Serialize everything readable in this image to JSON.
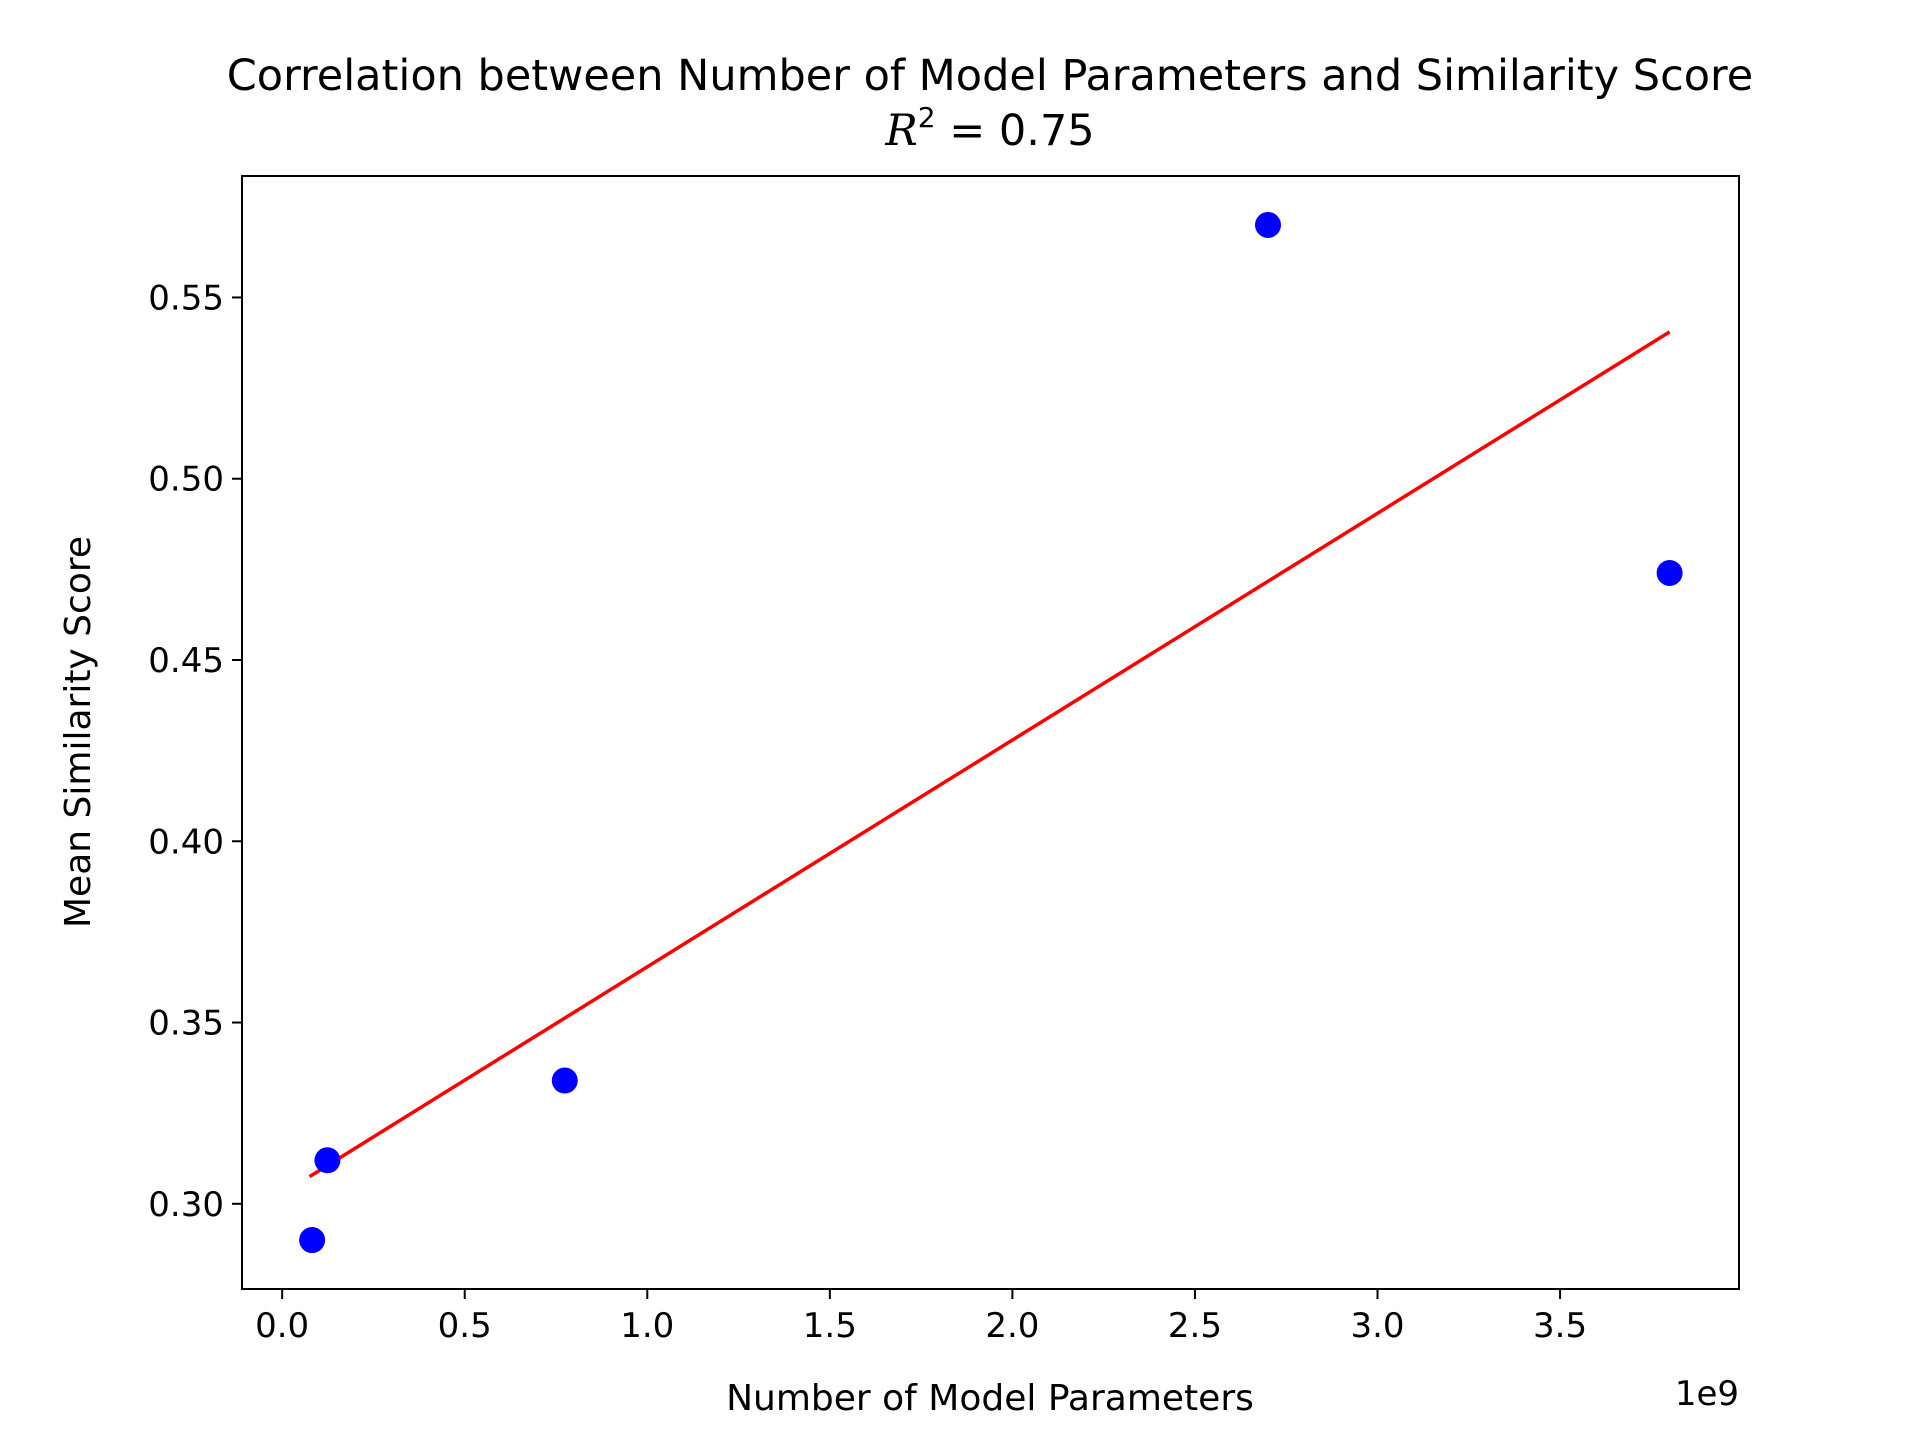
{
  "chart_data": {
    "type": "scatter",
    "title": "Correlation between Number of Model Parameters and Similarity Score",
    "subtitle": {
      "variable": "R",
      "exponent": "2",
      "text": " = 0.75"
    },
    "xlabel": "Number of Model Parameters",
    "ylabel": "Mean Similarity Score",
    "x_offset_label": "1e9",
    "x_scale": 1000000000,
    "xlim": [
      -0.11,
      3.99
    ],
    "ylim": [
      0.2765,
      0.5835
    ],
    "x_ticks": [
      0.0,
      0.5,
      1.0,
      1.5,
      2.0,
      2.5,
      3.0,
      3.5
    ],
    "x_tick_labels": [
      "0.0",
      "0.5",
      "1.0",
      "1.5",
      "2.0",
      "2.5",
      "3.0",
      "3.5"
    ],
    "y_ticks": [
      0.3,
      0.35,
      0.4,
      0.45,
      0.5,
      0.55
    ],
    "y_tick_labels": [
      "0.30",
      "0.35",
      "0.40",
      "0.45",
      "0.50",
      "0.55"
    ],
    "grid": false,
    "points": [
      {
        "x": 0.082,
        "y": 0.29
      },
      {
        "x": 0.124,
        "y": 0.312
      },
      {
        "x": 0.774,
        "y": 0.334
      },
      {
        "x": 2.7,
        "y": 0.57
      },
      {
        "x": 3.8,
        "y": 0.474
      }
    ],
    "trendline": {
      "x": [
        0.075,
        3.8
      ],
      "y": [
        0.3075,
        0.5405
      ]
    },
    "colors": {
      "points": "#0000ff",
      "trendline": "#ff0000",
      "axes": "#000000"
    }
  }
}
